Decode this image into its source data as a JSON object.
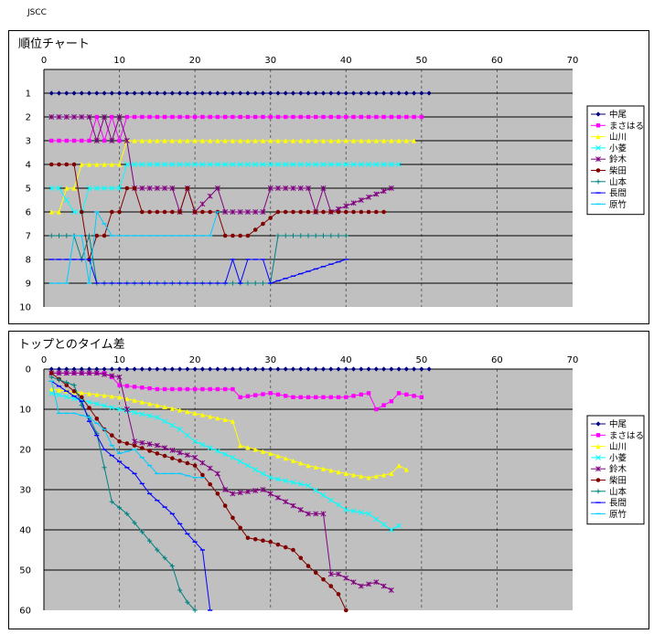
{
  "page_label": "JSCC",
  "chart_data": [
    {
      "type": "line",
      "title": "順位チャート",
      "xlim": [
        0,
        70
      ],
      "ylim": [
        0,
        10
      ],
      "y_inverted": true,
      "x_ticks": [
        0,
        10,
        20,
        30,
        40,
        50,
        60,
        70
      ],
      "y_ticks": [
        1,
        2,
        3,
        4,
        5,
        6,
        7,
        8,
        9,
        10
      ],
      "legend_position": "right",
      "grid": "vertical dashed, horizontal solid",
      "series": [
        {
          "name": "中尾",
          "color": "#000080",
          "marker": "diamond",
          "x": [
            1,
            51
          ],
          "y": [
            1,
            1
          ]
        },
        {
          "name": "まさはる",
          "color": "#FF00FF",
          "marker": "square",
          "x": [
            1,
            6,
            7,
            8,
            9,
            10,
            11,
            50
          ],
          "y": [
            3,
            3,
            2,
            3,
            2,
            3,
            2,
            2
          ]
        },
        {
          "name": "山川",
          "color": "#FFFF00",
          "marker": "triangle",
          "x": [
            1,
            2,
            3,
            4,
            5,
            10,
            11,
            49
          ],
          "y": [
            6,
            6,
            5,
            5,
            4,
            4,
            3,
            3
          ]
        },
        {
          "name": "小菱",
          "color": "#00FFFF",
          "marker": "x",
          "x": [
            1,
            2,
            4,
            5,
            6,
            10,
            11,
            47
          ],
          "y": [
            5,
            5,
            6,
            6,
            5,
            5,
            4,
            4
          ]
        },
        {
          "name": "鈴木",
          "color": "#800080",
          "marker": "star",
          "x": [
            1,
            6,
            7,
            8,
            9,
            10,
            11,
            12,
            13,
            17,
            18,
            19,
            20,
            23,
            24,
            29,
            30,
            35,
            36,
            37,
            38,
            46
          ],
          "y": [
            2,
            2,
            3,
            2,
            3,
            2,
            3,
            5,
            5,
            5,
            6,
            5,
            6,
            5,
            6,
            6,
            5,
            5,
            6,
            5,
            6,
            5
          ]
        },
        {
          "name": "柴田",
          "color": "#800000",
          "marker": "circle",
          "x": [
            1,
            4,
            5,
            6,
            7,
            8,
            9,
            10,
            11,
            12,
            13,
            18,
            19,
            20,
            23,
            24,
            26,
            27,
            31,
            32,
            45
          ],
          "y": [
            4,
            4,
            6,
            8,
            7,
            7,
            6,
            6,
            5,
            5,
            6,
            6,
            5,
            6,
            6,
            7,
            7,
            7,
            6,
            6,
            6
          ]
        },
        {
          "name": "山本",
          "color": "#008080",
          "marker": "plus",
          "x": [
            1,
            4,
            5,
            6,
            7,
            30,
            31,
            40
          ],
          "y": [
            7,
            7,
            8,
            7,
            9,
            9,
            7,
            7
          ]
        },
        {
          "name": "長間",
          "color": "#0000FF",
          "marker": "dash",
          "x": [
            1,
            6,
            7,
            24,
            25,
            26,
            27,
            29,
            30,
            40
          ],
          "y": [
            8,
            8,
            9,
            9,
            8,
            9,
            8,
            8,
            9,
            8
          ]
        },
        {
          "name": "原竹",
          "color": "#00CCFF",
          "marker": "dash",
          "x": [
            1,
            3,
            4,
            5,
            6,
            7,
            9,
            10,
            22,
            23
          ],
          "y": [
            9,
            9,
            7,
            7,
            9,
            6,
            7,
            7,
            7,
            6
          ]
        }
      ]
    },
    {
      "type": "line",
      "title": "トップとのタイム差",
      "xlim": [
        0,
        70
      ],
      "ylim": [
        0,
        60
      ],
      "y_inverted": true,
      "x_ticks": [
        0,
        10,
        20,
        30,
        40,
        50,
        60,
        70
      ],
      "y_ticks": [
        0,
        10,
        20,
        30,
        40,
        50,
        60
      ],
      "legend_position": "right",
      "grid": "vertical dashed, horizontal solid",
      "series": [
        {
          "name": "中尾",
          "color": "#000080",
          "marker": "diamond",
          "x": [
            1,
            51
          ],
          "y": [
            0,
            0
          ]
        },
        {
          "name": "まさはる",
          "color": "#FF00FF",
          "marker": "square",
          "x": [
            1,
            5,
            8,
            9,
            10,
            15,
            20,
            25,
            26,
            30,
            33,
            40,
            43,
            44,
            45,
            46,
            47,
            50
          ],
          "y": [
            1,
            1,
            1,
            2,
            4,
            5,
            5,
            5,
            7,
            6,
            7,
            7,
            6,
            10,
            9,
            8,
            6,
            7
          ]
        },
        {
          "name": "山川",
          "color": "#FFFF00",
          "marker": "triangle",
          "x": [
            1,
            10,
            15,
            20,
            25,
            26,
            30,
            35,
            40,
            43,
            46,
            47,
            48
          ],
          "y": [
            5,
            7,
            9,
            11,
            13,
            19,
            21,
            24,
            26,
            27,
            26,
            24,
            25
          ]
        },
        {
          "name": "小菱",
          "color": "#00FFFF",
          "marker": "x",
          "x": [
            1,
            10,
            15,
            18,
            20,
            25,
            30,
            35,
            40,
            43,
            46,
            47
          ],
          "y": [
            6,
            10,
            12,
            15,
            18,
            22,
            27,
            29,
            35,
            36,
            40,
            39
          ]
        },
        {
          "name": "鈴木",
          "color": "#800080",
          "marker": "star",
          "x": [
            1,
            7,
            10,
            11,
            12,
            15,
            20,
            23,
            24,
            25,
            29,
            33,
            35,
            37,
            38,
            39,
            42,
            44,
            46
          ],
          "y": [
            1,
            1,
            2,
            10,
            18,
            19,
            22,
            26,
            30,
            31,
            30,
            34,
            36,
            36,
            51,
            51,
            54,
            53,
            55
          ]
        },
        {
          "name": "柴田",
          "color": "#800000",
          "marker": "circle",
          "x": [
            1,
            5,
            8,
            10,
            12,
            15,
            20,
            23,
            25,
            27,
            30,
            33,
            35,
            38,
            39,
            40
          ],
          "y": [
            1,
            7,
            15,
            18,
            19,
            21,
            24,
            31,
            37,
            42,
            43,
            45,
            49,
            54,
            56,
            60
          ]
        },
        {
          "name": "山本",
          "color": "#008080",
          "marker": "plus",
          "x": [
            1,
            4,
            5,
            6,
            7,
            9,
            11,
            15,
            17,
            18,
            19,
            20
          ],
          "y": [
            2,
            4,
            9,
            12,
            16,
            33,
            36,
            45,
            49,
            55,
            58,
            60
          ]
        },
        {
          "name": "長間",
          "color": "#0000FF",
          "marker": "dash",
          "x": [
            1,
            5,
            6,
            8,
            10,
            12,
            14,
            17,
            19,
            21,
            22
          ],
          "y": [
            3,
            8,
            13,
            20,
            23,
            26,
            31,
            36,
            41,
            45,
            60
          ]
        },
        {
          "name": "原竹",
          "color": "#00CCFF",
          "marker": "dash",
          "x": [
            1,
            2,
            4,
            6,
            8,
            9,
            10,
            12,
            14,
            15,
            18,
            20,
            21
          ],
          "y": [
            3,
            11,
            11,
            12,
            15,
            19,
            21,
            20,
            24,
            26,
            26,
            27,
            27
          ]
        }
      ]
    }
  ]
}
